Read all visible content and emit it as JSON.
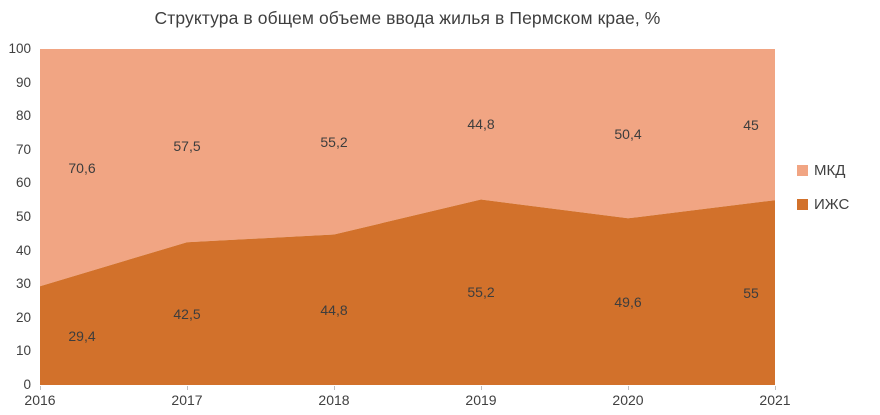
{
  "chart_data": {
    "type": "area",
    "stacked": true,
    "title": "Структура в общем объеме ввода жилья в Пермском крае, %",
    "categories": [
      "2016",
      "2017",
      "2018",
      "2019",
      "2020",
      "2021"
    ],
    "series": [
      {
        "name": "ИЖС",
        "color": "#D2712B",
        "values": [
          29.4,
          42.5,
          44.8,
          55.2,
          49.6,
          55
        ],
        "labels": [
          "29,4",
          "42,5",
          "44,8",
          "55,2",
          "49,6",
          "55"
        ]
      },
      {
        "name": "МКД",
        "color": "#F1A583",
        "values": [
          70.6,
          57.5,
          55.2,
          44.8,
          50.4,
          45
        ],
        "labels": [
          "70,6",
          "57,5",
          "55,2",
          "44,8",
          "50,4",
          "45"
        ]
      }
    ],
    "ylim": [
      0,
      100
    ],
    "y_ticks": [
      0,
      10,
      20,
      30,
      40,
      50,
      60,
      70,
      80,
      90,
      100
    ],
    "xlabel": "",
    "ylabel": "",
    "grid": false,
    "legend_position": "right",
    "data_label_color": "#3d3d3d",
    "tick_color": "#bfbfbf"
  },
  "legend": {
    "items": [
      {
        "label": "МКД",
        "color": "#F1A583"
      },
      {
        "label": "ИЖС",
        "color": "#D2712B"
      }
    ]
  }
}
